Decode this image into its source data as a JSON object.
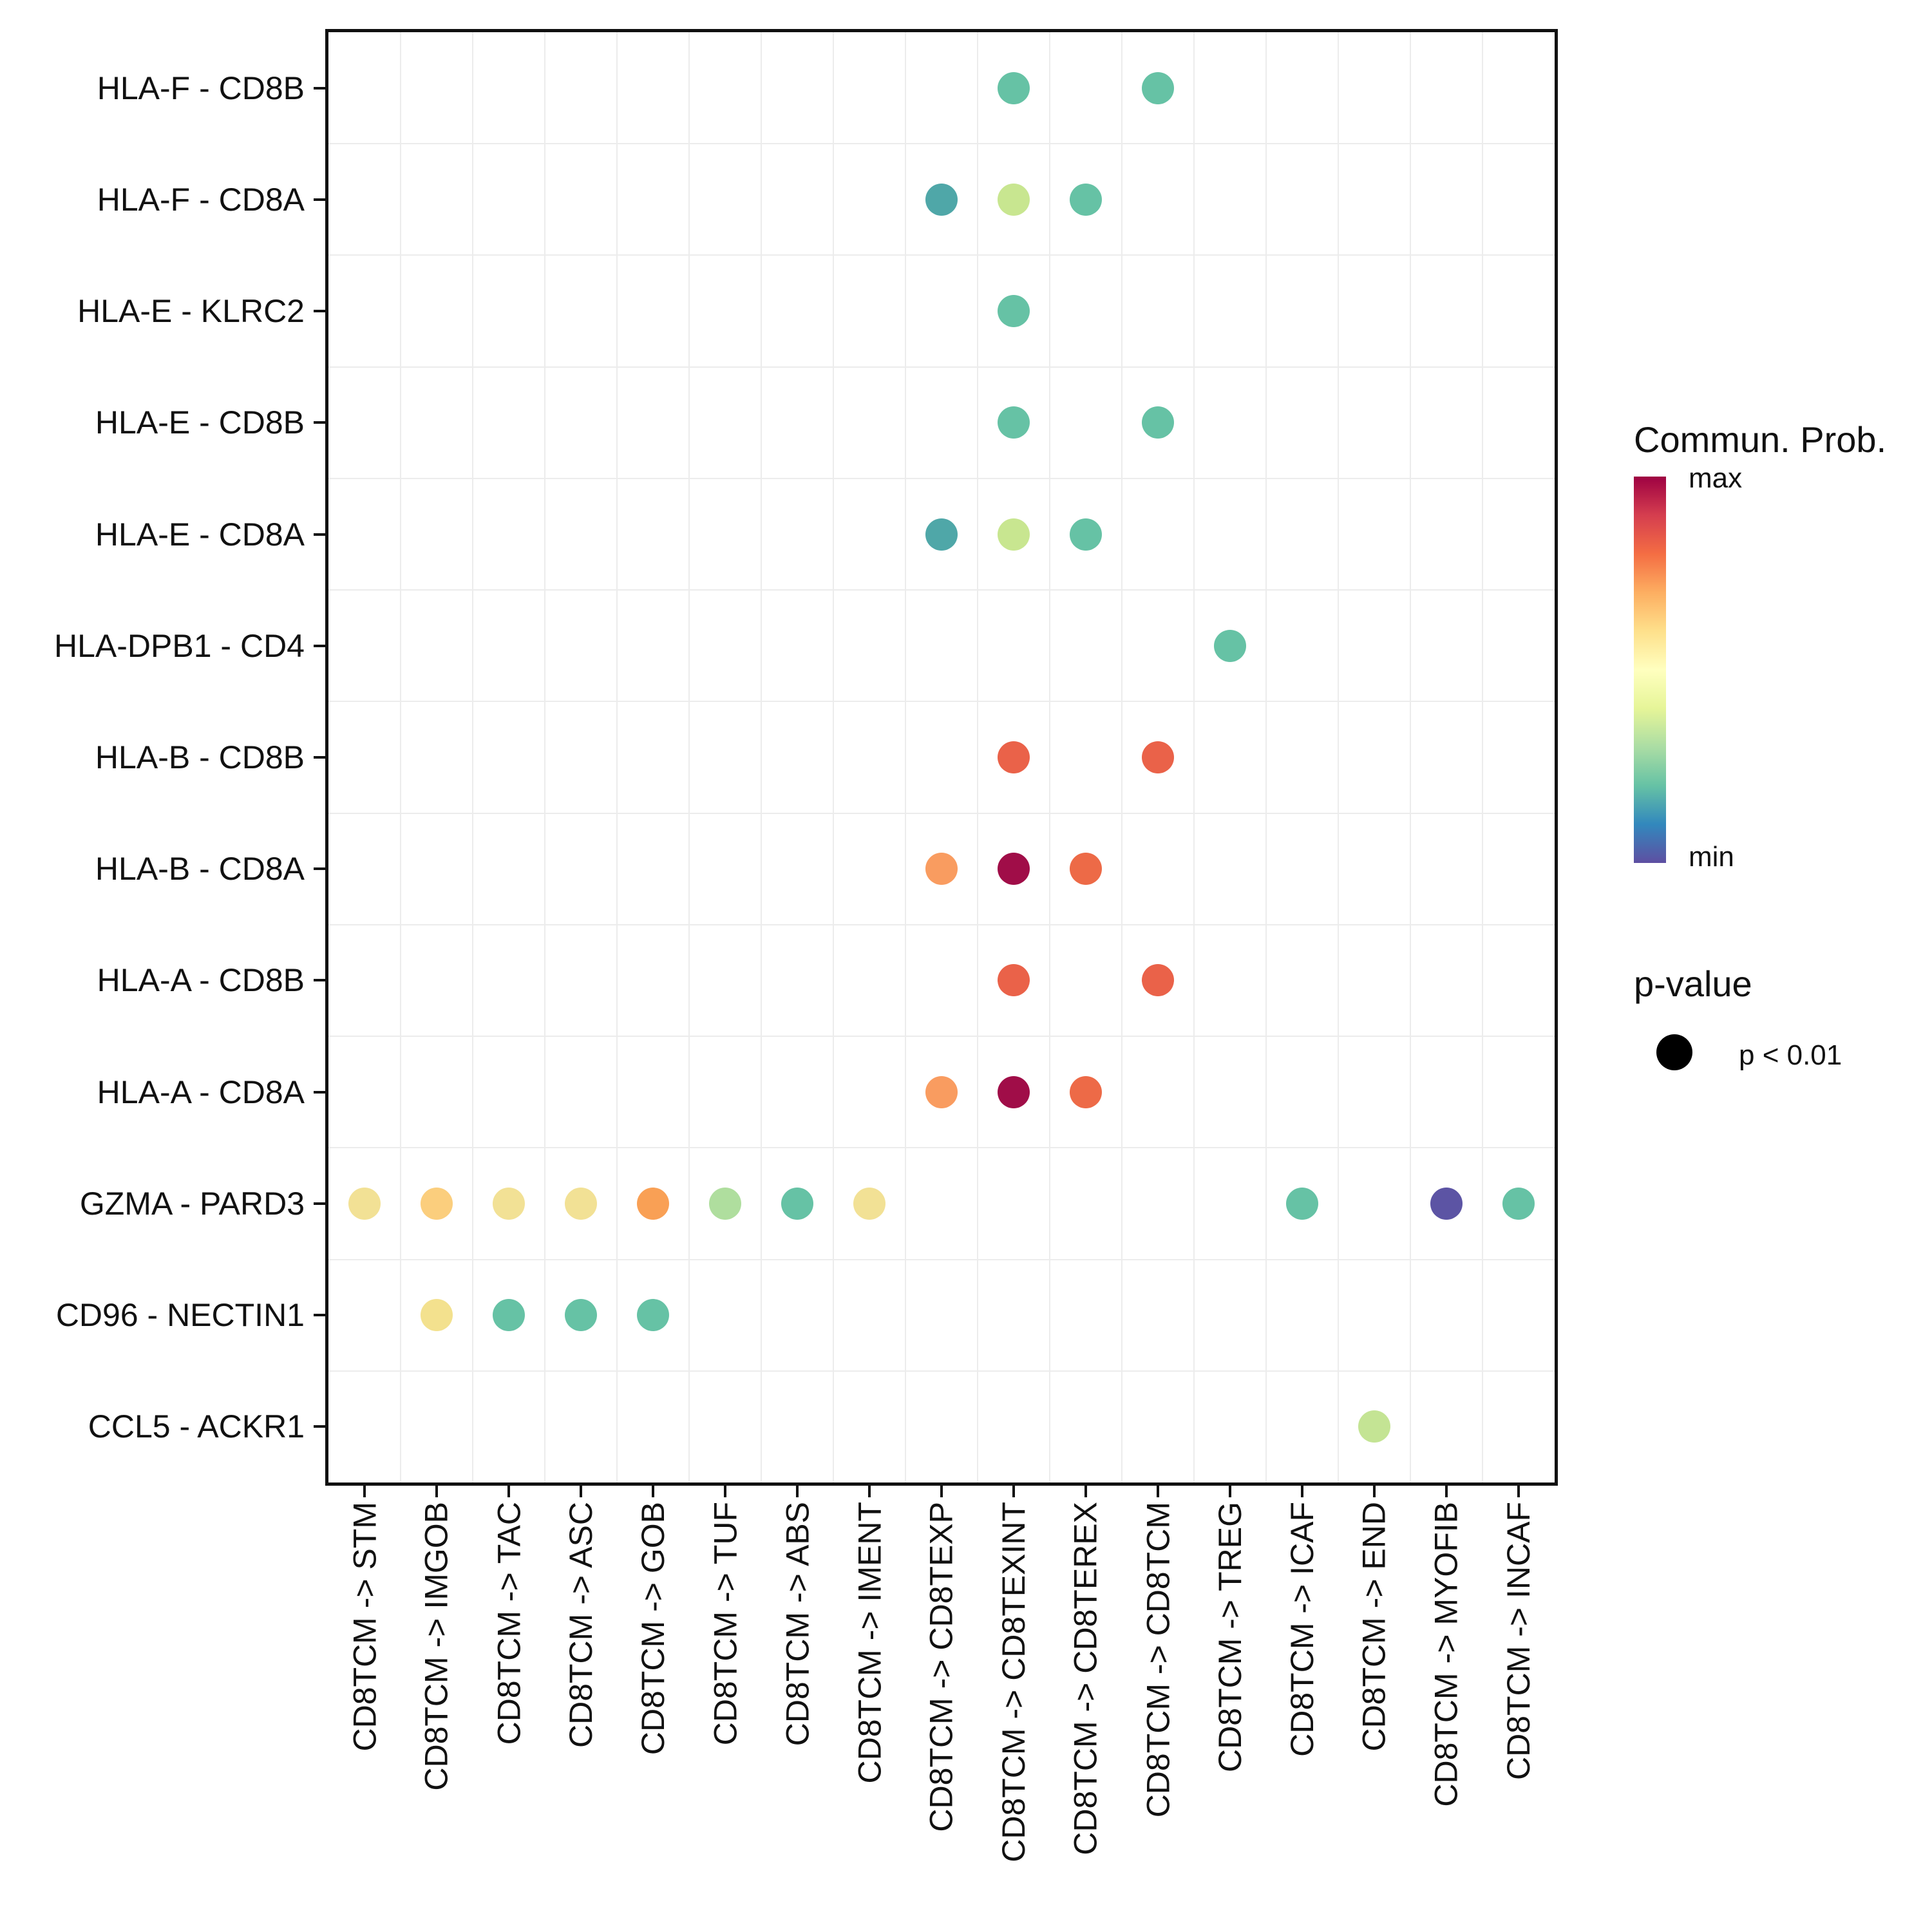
{
  "chart_data": {
    "type": "scatter",
    "subtype": "dot-plot (cell-cell communication bubble plot)",
    "title": "",
    "xlabel": "",
    "ylabel": "",
    "grid": true,
    "legend_position": "right",
    "x_categories": [
      "CD8TCM -> STM",
      "CD8TCM -> IMGOB",
      "CD8TCM -> TAC",
      "CD8TCM -> ASC",
      "CD8TCM -> GOB",
      "CD8TCM -> TUF",
      "CD8TCM -> ABS",
      "CD8TCM -> IMENT",
      "CD8TCM -> CD8TEXP",
      "CD8TCM -> CD8TEXINT",
      "CD8TCM -> CD8TEREX",
      "CD8TCM -> CD8TCM",
      "CD8TCM -> TREG",
      "CD8TCM -> ICAF",
      "CD8TCM -> END",
      "CD8TCM -> MYOFIB",
      "CD8TCM -> INCAF"
    ],
    "y_categories": [
      "HLA-F - CD8B",
      "HLA-F - CD8A",
      "HLA-E - KLRC2",
      "HLA-E - CD8B",
      "HLA-E - CD8A",
      "HLA-DPB1 - CD4",
      "HLA-B - CD8B",
      "HLA-B - CD8A",
      "HLA-A - CD8B",
      "HLA-A - CD8A",
      "GZMA - PARD3",
      "CD96 - NECTIN1",
      "CCL5 - ACKR1"
    ],
    "points": [
      {
        "y": "HLA-F - CD8B",
        "x": "CD8TCM -> CD8TEXINT",
        "color": "#66C2A5"
      },
      {
        "y": "HLA-F - CD8B",
        "x": "CD8TCM -> CD8TCM",
        "color": "#66C2A5"
      },
      {
        "y": "HLA-F - CD8A",
        "x": "CD8TCM -> CD8TEXP",
        "color": "#4FA7A8"
      },
      {
        "y": "HLA-F - CD8A",
        "x": "CD8TCM -> CD8TEXINT",
        "color": "#C8E690"
      },
      {
        "y": "HLA-F - CD8A",
        "x": "CD8TCM -> CD8TEREX",
        "color": "#66C2A5"
      },
      {
        "y": "HLA-E - KLRC2",
        "x": "CD8TCM -> CD8TEXINT",
        "color": "#66C2A5"
      },
      {
        "y": "HLA-E - CD8B",
        "x": "CD8TCM -> CD8TEXINT",
        "color": "#66C2A5"
      },
      {
        "y": "HLA-E - CD8B",
        "x": "CD8TCM -> CD8TCM",
        "color": "#66C2A5"
      },
      {
        "y": "HLA-E - CD8A",
        "x": "CD8TCM -> CD8TEXP",
        "color": "#4FA7A8"
      },
      {
        "y": "HLA-E - CD8A",
        "x": "CD8TCM -> CD8TEXINT",
        "color": "#C8E690"
      },
      {
        "y": "HLA-E - CD8A",
        "x": "CD8TCM -> CD8TEREX",
        "color": "#66C2A5"
      },
      {
        "y": "HLA-DPB1 - CD4",
        "x": "CD8TCM -> TREG",
        "color": "#66C2A5"
      },
      {
        "y": "HLA-B - CD8B",
        "x": "CD8TCM -> CD8TEXINT",
        "color": "#EA6249"
      },
      {
        "y": "HLA-B - CD8B",
        "x": "CD8TCM -> CD8TCM",
        "color": "#EA6249"
      },
      {
        "y": "HLA-B - CD8A",
        "x": "CD8TCM -> CD8TEXP",
        "color": "#F99C60"
      },
      {
        "y": "HLA-B - CD8A",
        "x": "CD8TCM -> CD8TEXINT",
        "color": "#A00D48"
      },
      {
        "y": "HLA-B - CD8A",
        "x": "CD8TCM -> CD8TEREX",
        "color": "#ED6A47"
      },
      {
        "y": "HLA-A - CD8B",
        "x": "CD8TCM -> CD8TEXINT",
        "color": "#EA6249"
      },
      {
        "y": "HLA-A - CD8B",
        "x": "CD8TCM -> CD8TCM",
        "color": "#EA6249"
      },
      {
        "y": "HLA-A - CD8A",
        "x": "CD8TCM -> CD8TEXP",
        "color": "#F99C60"
      },
      {
        "y": "HLA-A - CD8A",
        "x": "CD8TCM -> CD8TEXINT",
        "color": "#A00D48"
      },
      {
        "y": "HLA-A - CD8A",
        "x": "CD8TCM -> CD8TEREX",
        "color": "#ED6A47"
      },
      {
        "y": "GZMA - PARD3",
        "x": "CD8TCM -> STM",
        "color": "#F2E195"
      },
      {
        "y": "GZMA - PARD3",
        "x": "CD8TCM -> IMGOB",
        "color": "#FBCE7D"
      },
      {
        "y": "GZMA - PARD3",
        "x": "CD8TCM -> TAC",
        "color": "#F2E195"
      },
      {
        "y": "GZMA - PARD3",
        "x": "CD8TCM -> ASC",
        "color": "#F2E195"
      },
      {
        "y": "GZMA - PARD3",
        "x": "CD8TCM -> GOB",
        "color": "#F9A055"
      },
      {
        "y": "GZMA - PARD3",
        "x": "CD8TCM -> TUF",
        "color": "#AFDE9E"
      },
      {
        "y": "GZMA - PARD3",
        "x": "CD8TCM -> ABS",
        "color": "#66C2A5"
      },
      {
        "y": "GZMA - PARD3",
        "x": "CD8TCM -> IMENT",
        "color": "#F2E195"
      },
      {
        "y": "GZMA - PARD3",
        "x": "CD8TCM -> ICAF",
        "color": "#66C2A5"
      },
      {
        "y": "GZMA - PARD3",
        "x": "CD8TCM -> MYOFIB",
        "color": "#5C54A4"
      },
      {
        "y": "GZMA - PARD3",
        "x": "CD8TCM -> INCAF",
        "color": "#66C2A5"
      },
      {
        "y": "CD96 - NECTIN1",
        "x": "CD8TCM -> IMGOB",
        "color": "#F3E18E"
      },
      {
        "y": "CD96 - NECTIN1",
        "x": "CD8TCM -> TAC",
        "color": "#66C2A5"
      },
      {
        "y": "CD96 - NECTIN1",
        "x": "CD8TCM -> ASC",
        "color": "#66C2A5"
      },
      {
        "y": "CD96 - NECTIN1",
        "x": "CD8TCM -> GOB",
        "color": "#66C2A5"
      },
      {
        "y": "CCL5 - ACKR1",
        "x": "CD8TCM -> END",
        "color": "#C4E494"
      }
    ]
  },
  "legend": {
    "colorbar": {
      "title": "Commun. Prob.",
      "max_label": "max",
      "min_label": "min",
      "gradient_top_to_bottom": [
        "#9E0142",
        "#D53E4F",
        "#F46D43",
        "#FDAE61",
        "#FEE08B",
        "#FFFFBF",
        "#E6F598",
        "#ABDDA4",
        "#66C2A5",
        "#3288BD",
        "#5E4FA2"
      ]
    },
    "pvalue": {
      "title": "p-value",
      "items": [
        {
          "label": "p < 0.01",
          "dot_color": "#000000"
        }
      ]
    }
  },
  "colors": {
    "background": "#FFFFFF",
    "panel_border": "#111111",
    "gridline": "#ECECEC",
    "tick": "#111111",
    "text": "#111111"
  }
}
